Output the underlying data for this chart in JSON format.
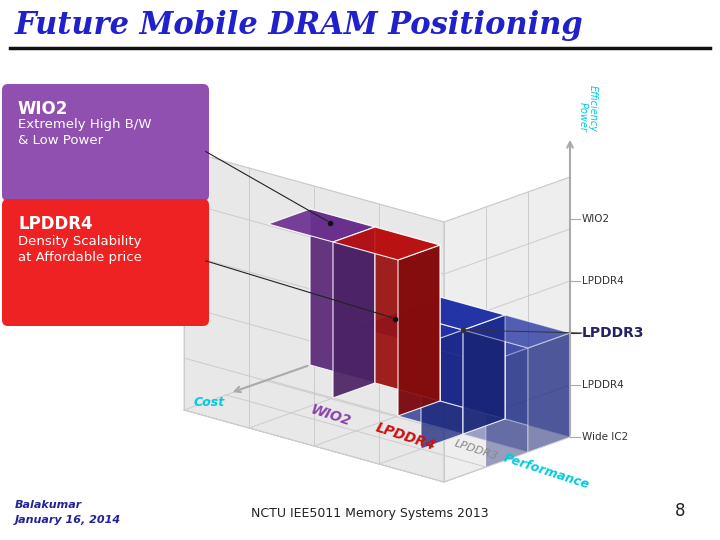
{
  "title": "Future Mobile DRAM Positioning",
  "title_color": "#2020CC",
  "title_fontsize": 22,
  "bg_color": "#FFFFFF",
  "footer_left_line1": "Balakumar",
  "footer_left_line2": "January 16, 2014",
  "footer_center": "NCTU IEE5011 Memory Systems 2013",
  "footer_page": "8",
  "wio2_box_color": "#9050B0",
  "lpddr4_box_color": "#EE2222",
  "wio2_title": "WIO2",
  "wio2_desc1": "Extremely High B/W",
  "wio2_desc2": "& Low Power",
  "lpddr4_title": "LPDDR4",
  "lpddr4_desc1": "Density Scalability",
  "lpddr4_desc2": "at Affordable price",
  "grid_color": "#CCCCCC",
  "grid_fill": "#EEEEEE",
  "wio2_cube_color": "#6B3090",
  "red_cube_color": "#BB1111",
  "blue_cube_color": "#2233AA",
  "right_label_wio2": "WIO2",
  "right_label_lpddr4_top": "LPDDR4",
  "right_label_lpddr3": "LPDDR3",
  "right_label_lpddr4_bot": "LPDDR4",
  "right_label_wideic2": "Wide IC2",
  "bottom_wio2_color": "#8844AA",
  "bottom_lpddr4_color": "#CC1111",
  "bottom_lpddr3_color": "#888888",
  "bottom_performance_color": "#00CCDD",
  "axis_cyan": "#00CCDD",
  "axis_gray": "#AAAAAA"
}
